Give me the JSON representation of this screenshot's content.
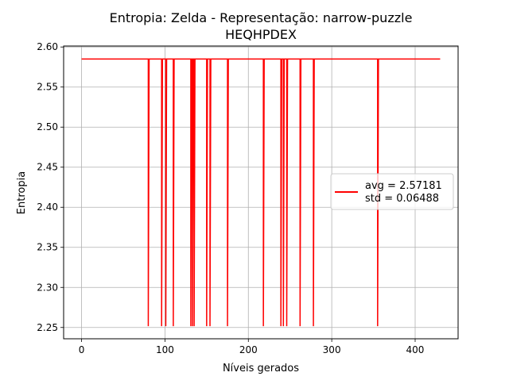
{
  "chart_data": {
    "type": "line",
    "title_line1": "Entropia: Zelda - Representação: narrow-puzzle",
    "title_line2": "HEQHPDEX",
    "xlabel": "Níveis gerados",
    "ylabel": "Entropia",
    "xlim": [
      -21.5,
      451.5
    ],
    "ylim": [
      2.2359,
      2.6012
    ],
    "x_ticks": [
      0,
      100,
      200,
      300,
      400
    ],
    "y_ticks": [
      2.25,
      2.3,
      2.35,
      2.4,
      2.45,
      2.5,
      2.55,
      2.6
    ],
    "x_tick_labels": [
      "0",
      "100",
      "200",
      "300",
      "400"
    ],
    "y_tick_labels": [
      "2.25",
      "2.30",
      "2.35",
      "2.40",
      "2.45",
      "2.50",
      "2.55",
      "2.60"
    ],
    "grid": true,
    "legend_position": "right",
    "legend": {
      "line1": "avg = 2.57181",
      "line2": "std = 0.06488"
    },
    "series": [
      {
        "color": "#ff0000",
        "x_start": 0,
        "x_end": 430,
        "base_value": 2.585,
        "dip_value": 2.2516,
        "dip_x": [
          80,
          96,
          101,
          110,
          131,
          133,
          135,
          150,
          154,
          175,
          218,
          239,
          242,
          246,
          262,
          278,
          355
        ]
      }
    ]
  }
}
